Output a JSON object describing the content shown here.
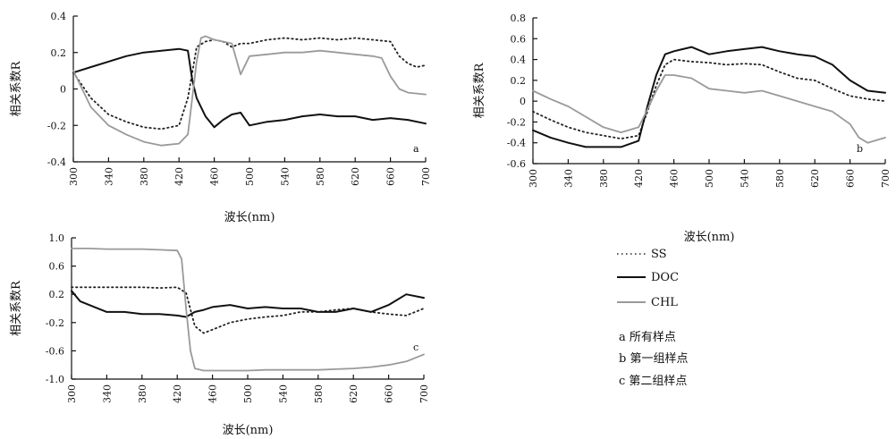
{
  "colors": {
    "SS": "#222222",
    "DOC": "#111111",
    "CHL": "#9a9a9a"
  },
  "legend": {
    "placement": "right-bottom",
    "entries": [
      "SS",
      "DOC",
      "CHL"
    ],
    "notes": [
      "a  所有样点",
      "b  第一组样点",
      "c  第二组样点"
    ]
  },
  "chart_data": [
    {
      "id": "a",
      "type": "line",
      "panel_label": "a",
      "xlabel": "波长(nm)",
      "ylabel": "相关系数R",
      "xlim": [
        300,
        700
      ],
      "ylim": [
        -0.4,
        0.4
      ],
      "x_ticks": [
        300,
        340,
        380,
        420,
        460,
        500,
        540,
        580,
        620,
        660,
        700
      ],
      "y_ticks": [
        -0.4,
        -0.2,
        0,
        0.2,
        0.4
      ],
      "y_tick_labels": [
        "-0.4",
        "-0.2",
        "0",
        "0.2",
        "0.4"
      ],
      "series": [
        {
          "name": "SS",
          "style": "dotted",
          "x": [
            300,
            320,
            340,
            360,
            380,
            400,
            420,
            430,
            440,
            450,
            460,
            470,
            480,
            490,
            500,
            520,
            540,
            560,
            580,
            600,
            620,
            640,
            660,
            670,
            680,
            690,
            700
          ],
          "y": [
            0.09,
            -0.05,
            -0.14,
            -0.18,
            -0.21,
            -0.22,
            -0.2,
            -0.05,
            0.23,
            0.26,
            0.27,
            0.26,
            0.23,
            0.25,
            0.25,
            0.27,
            0.28,
            0.27,
            0.28,
            0.27,
            0.28,
            0.27,
            0.26,
            0.18,
            0.14,
            0.12,
            0.13
          ]
        },
        {
          "name": "DOC",
          "style": "solid",
          "x": [
            300,
            320,
            340,
            360,
            380,
            400,
            420,
            430,
            435,
            440,
            450,
            460,
            470,
            480,
            490,
            500,
            520,
            540,
            560,
            580,
            600,
            620,
            640,
            660,
            680,
            700
          ],
          "y": [
            0.09,
            0.12,
            0.15,
            0.18,
            0.2,
            0.21,
            0.22,
            0.21,
            0.05,
            -0.05,
            -0.15,
            -0.21,
            -0.17,
            -0.14,
            -0.13,
            -0.2,
            -0.18,
            -0.17,
            -0.15,
            -0.14,
            -0.15,
            -0.15,
            -0.17,
            -0.16,
            -0.17,
            -0.19
          ]
        },
        {
          "name": "CHL",
          "style": "solid",
          "x": [
            300,
            320,
            340,
            360,
            380,
            400,
            420,
            430,
            435,
            440,
            445,
            450,
            460,
            480,
            490,
            500,
            520,
            540,
            560,
            580,
            600,
            620,
            640,
            650,
            660,
            670,
            680,
            700
          ],
          "y": [
            0.1,
            -0.1,
            -0.2,
            -0.25,
            -0.29,
            -0.31,
            -0.3,
            -0.25,
            -0.05,
            0.15,
            0.28,
            0.29,
            0.27,
            0.25,
            0.08,
            0.18,
            0.19,
            0.2,
            0.2,
            0.21,
            0.2,
            0.19,
            0.18,
            0.17,
            0.07,
            0.0,
            -0.02,
            -0.03
          ]
        }
      ]
    },
    {
      "id": "b",
      "type": "line",
      "panel_label": "b",
      "xlabel": "波长(nm)",
      "ylabel": "相关系数R",
      "xlim": [
        300,
        700
      ],
      "ylim": [
        -0.6,
        0.8
      ],
      "x_ticks": [
        300,
        340,
        380,
        420,
        460,
        500,
        540,
        580,
        620,
        660,
        700
      ],
      "y_ticks": [
        -0.6,
        -0.4,
        -0.2,
        0,
        0.2,
        0.4,
        0.6,
        0.8
      ],
      "y_tick_labels": [
        "-0.6",
        "-0.4",
        "-0.2",
        "0",
        "0.2",
        "0.4",
        "0.6",
        "0.8"
      ],
      "series": [
        {
          "name": "SS",
          "style": "dotted",
          "x": [
            300,
            320,
            340,
            360,
            380,
            400,
            420,
            430,
            440,
            450,
            460,
            480,
            500,
            520,
            540,
            560,
            580,
            600,
            620,
            640,
            660,
            680,
            700
          ],
          "y": [
            -0.1,
            -0.18,
            -0.25,
            -0.3,
            -0.33,
            -0.36,
            -0.33,
            -0.1,
            0.15,
            0.35,
            0.4,
            0.38,
            0.37,
            0.35,
            0.36,
            0.35,
            0.28,
            0.22,
            0.2,
            0.12,
            0.05,
            0.02,
            0.0
          ]
        },
        {
          "name": "DOC",
          "style": "solid",
          "x": [
            300,
            320,
            340,
            360,
            380,
            400,
            420,
            430,
            440,
            450,
            460,
            480,
            500,
            520,
            540,
            560,
            580,
            600,
            620,
            640,
            660,
            680,
            700
          ],
          "y": [
            -0.28,
            -0.35,
            -0.4,
            -0.44,
            -0.44,
            -0.44,
            -0.38,
            -0.05,
            0.25,
            0.45,
            0.48,
            0.52,
            0.45,
            0.48,
            0.5,
            0.52,
            0.48,
            0.45,
            0.43,
            0.35,
            0.2,
            0.1,
            0.08
          ]
        },
        {
          "name": "CHL",
          "style": "solid",
          "x": [
            300,
            320,
            340,
            360,
            380,
            400,
            420,
            430,
            440,
            450,
            460,
            480,
            500,
            520,
            540,
            560,
            580,
            600,
            620,
            640,
            660,
            670,
            680,
            700
          ],
          "y": [
            0.1,
            0.02,
            -0.05,
            -0.15,
            -0.25,
            -0.3,
            -0.25,
            -0.08,
            0.1,
            0.25,
            0.25,
            0.22,
            0.12,
            0.1,
            0.08,
            0.1,
            0.05,
            0.0,
            -0.05,
            -0.1,
            -0.22,
            -0.35,
            -0.4,
            -0.35
          ]
        }
      ]
    },
    {
      "id": "c",
      "type": "line",
      "panel_label": "c",
      "xlabel": "波长(nm)",
      "ylabel": "相关系数R",
      "xlim": [
        300,
        700
      ],
      "ylim": [
        -1.0,
        1.0
      ],
      "x_ticks": [
        300,
        340,
        380,
        420,
        460,
        500,
        540,
        580,
        620,
        660,
        700
      ],
      "y_ticks": [
        -1.0,
        -0.6,
        -0.2,
        0.2,
        0.6,
        1.0
      ],
      "y_tick_labels": [
        "-1.0",
        "-0.6",
        "-0.2",
        "0.2",
        "0.6",
        "1.0"
      ],
      "series": [
        {
          "name": "SS",
          "style": "dotted",
          "x": [
            300,
            320,
            340,
            360,
            380,
            400,
            420,
            430,
            440,
            450,
            460,
            480,
            500,
            520,
            540,
            560,
            580,
            600,
            620,
            640,
            660,
            680,
            700
          ],
          "y": [
            0.3,
            0.3,
            0.3,
            0.3,
            0.3,
            0.29,
            0.3,
            0.22,
            -0.25,
            -0.35,
            -0.3,
            -0.2,
            -0.15,
            -0.12,
            -0.1,
            -0.05,
            -0.05,
            -0.02,
            0.0,
            -0.05,
            -0.08,
            -0.1,
            0.0
          ]
        },
        {
          "name": "DOC",
          "style": "solid",
          "x": [
            300,
            310,
            320,
            340,
            360,
            380,
            400,
            420,
            430,
            440,
            450,
            460,
            480,
            500,
            520,
            540,
            560,
            580,
            600,
            620,
            640,
            660,
            680,
            700
          ],
          "y": [
            0.25,
            0.1,
            0.05,
            -0.05,
            -0.05,
            -0.08,
            -0.08,
            -0.1,
            -0.12,
            -0.05,
            -0.02,
            0.02,
            0.05,
            0.0,
            0.02,
            0.0,
            0.0,
            -0.05,
            -0.05,
            0.0,
            -0.05,
            0.05,
            0.2,
            0.15
          ]
        },
        {
          "name": "CHL",
          "style": "solid",
          "x": [
            300,
            320,
            340,
            360,
            380,
            400,
            420,
            425,
            430,
            435,
            440,
            450,
            460,
            480,
            500,
            520,
            540,
            560,
            580,
            600,
            620,
            640,
            660,
            680,
            700
          ],
          "y": [
            0.85,
            0.85,
            0.84,
            0.84,
            0.84,
            0.83,
            0.82,
            0.7,
            0.0,
            -0.6,
            -0.85,
            -0.88,
            -0.88,
            -0.88,
            -0.88,
            -0.87,
            -0.87,
            -0.87,
            -0.87,
            -0.86,
            -0.85,
            -0.83,
            -0.8,
            -0.75,
            -0.65
          ]
        }
      ]
    }
  ]
}
